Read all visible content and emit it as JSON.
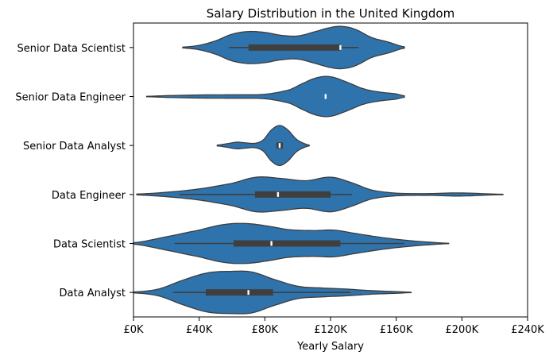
{
  "chart_data": {
    "type": "violin",
    "title": "Salary Distribution in the United Kingdom",
    "xlabel": "Yearly Salary",
    "ylabel": "",
    "xlim": [
      0,
      240000
    ],
    "xticks": [
      0,
      40000,
      80000,
      120000,
      160000,
      200000,
      240000
    ],
    "xtick_labels": [
      "£0K",
      "£40K",
      "£80K",
      "£120K",
      "£160K",
      "£200K",
      "£240K"
    ],
    "grid": false,
    "orientation": "horizontal",
    "color": "#2f73ad",
    "box_color": "#3f3f3f",
    "categories": [
      "Senior Data Scientist",
      "Senior Data Engineer",
      "Senior Data Analyst",
      "Data Engineer",
      "Data Scientist",
      "Data Analyst"
    ],
    "series": [
      {
        "category": "Senior Data Scientist",
        "range": [
          30000,
          165000
        ],
        "whiskers": [
          58000,
          137000
        ],
        "quartiles": [
          70000,
          126000
        ],
        "median": 126000,
        "density": [
          [
            30000,
            0.02
          ],
          [
            40000,
            0.1
          ],
          [
            50000,
            0.3
          ],
          [
            60000,
            0.6
          ],
          [
            70000,
            0.72
          ],
          [
            80000,
            0.68
          ],
          [
            90000,
            0.55
          ],
          [
            100000,
            0.52
          ],
          [
            110000,
            0.7
          ],
          [
            120000,
            0.9
          ],
          [
            127000,
            0.95
          ],
          [
            135000,
            0.82
          ],
          [
            145000,
            0.45
          ],
          [
            155000,
            0.25
          ],
          [
            165000,
            0.03
          ]
        ]
      },
      {
        "category": "Senior Data Engineer",
        "range": [
          8000,
          165000
        ],
        "whiskers": [
          117000,
          117000
        ],
        "quartiles": [
          117000,
          117000
        ],
        "median": 117000,
        "density": [
          [
            8000,
            0.01
          ],
          [
            20000,
            0.04
          ],
          [
            40000,
            0.07
          ],
          [
            60000,
            0.08
          ],
          [
            80000,
            0.1
          ],
          [
            95000,
            0.3
          ],
          [
            105000,
            0.65
          ],
          [
            112000,
            0.85
          ],
          [
            119000,
            0.9
          ],
          [
            128000,
            0.7
          ],
          [
            140000,
            0.35
          ],
          [
            150000,
            0.2
          ],
          [
            160000,
            0.12
          ],
          [
            165000,
            0.03
          ]
        ]
      },
      {
        "category": "Senior Data Analyst",
        "range": [
          51000,
          107000
        ],
        "whiskers": [
          87000,
          91000
        ],
        "quartiles": [
          87000,
          91000
        ],
        "median": 89000,
        "density": [
          [
            51000,
            0.02
          ],
          [
            57000,
            0.08
          ],
          [
            63000,
            0.15
          ],
          [
            68000,
            0.12
          ],
          [
            74000,
            0.1
          ],
          [
            79000,
            0.25
          ],
          [
            84000,
            0.7
          ],
          [
            89000,
            0.9
          ],
          [
            94000,
            0.7
          ],
          [
            99000,
            0.3
          ],
          [
            103000,
            0.12
          ],
          [
            107000,
            0.02
          ]
        ]
      },
      {
        "category": "Data Engineer",
        "range": [
          2000,
          225000
        ],
        "whiskers": [
          28000,
          133000
        ],
        "quartiles": [
          74000,
          120000
        ],
        "median": 88000,
        "density": [
          [
            2000,
            0.02
          ],
          [
            20000,
            0.1
          ],
          [
            40000,
            0.25
          ],
          [
            60000,
            0.5
          ],
          [
            75000,
            0.78
          ],
          [
            90000,
            0.72
          ],
          [
            105000,
            0.62
          ],
          [
            120000,
            0.78
          ],
          [
            132000,
            0.55
          ],
          [
            145000,
            0.2
          ],
          [
            160000,
            0.06
          ],
          [
            180000,
            0.04
          ],
          [
            195000,
            0.07
          ],
          [
            205000,
            0.06
          ],
          [
            215000,
            0.03
          ],
          [
            225000,
            0.01
          ]
        ]
      },
      {
        "category": "Data Scientist",
        "range": [
          0,
          192000
        ],
        "whiskers": [
          25000,
          165000
        ],
        "quartiles": [
          61000,
          126000
        ],
        "median": 84000,
        "density": [
          [
            0,
            0.03
          ],
          [
            20000,
            0.3
          ],
          [
            40000,
            0.6
          ],
          [
            55000,
            0.85
          ],
          [
            68000,
            0.9
          ],
          [
            80000,
            0.8
          ],
          [
            95000,
            0.62
          ],
          [
            110000,
            0.58
          ],
          [
            122000,
            0.6
          ],
          [
            135000,
            0.45
          ],
          [
            150000,
            0.28
          ],
          [
            165000,
            0.15
          ],
          [
            180000,
            0.06
          ],
          [
            192000,
            0.01
          ]
        ]
      },
      {
        "category": "Data Analyst",
        "range": [
          0,
          169000
        ],
        "whiskers": [
          24000,
          132000
        ],
        "quartiles": [
          44000,
          85000
        ],
        "median": 70000,
        "density": [
          [
            0,
            0.02
          ],
          [
            15000,
            0.15
          ],
          [
            30000,
            0.55
          ],
          [
            45000,
            0.88
          ],
          [
            60000,
            0.95
          ],
          [
            72000,
            0.92
          ],
          [
            85000,
            0.6
          ],
          [
            100000,
            0.28
          ],
          [
            115000,
            0.2
          ],
          [
            130000,
            0.15
          ],
          [
            145000,
            0.08
          ],
          [
            160000,
            0.04
          ],
          [
            169000,
            0.01
          ]
        ]
      }
    ]
  }
}
